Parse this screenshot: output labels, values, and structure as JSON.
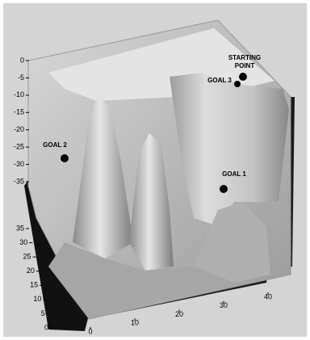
{
  "chart_data": {
    "type": "surface",
    "zlim": [
      -35,
      0
    ],
    "zticks": [
      0,
      -5,
      -10,
      -15,
      -20,
      -25,
      -30,
      -35
    ],
    "ylim": [
      0,
      35
    ],
    "yticks": [
      0,
      5,
      10,
      15,
      20,
      25,
      30,
      35
    ],
    "xlim": [
      0,
      40
    ],
    "xticks": [
      0,
      10,
      20,
      30,
      40
    ],
    "annotations": [
      {
        "label": [
          "STARTING",
          "POINT"
        ]
      },
      {
        "label": [
          "GOAL 3"
        ]
      },
      {
        "label": [
          "GOAL 2"
        ]
      },
      {
        "label": [
          "GOAL 1"
        ]
      }
    ]
  }
}
